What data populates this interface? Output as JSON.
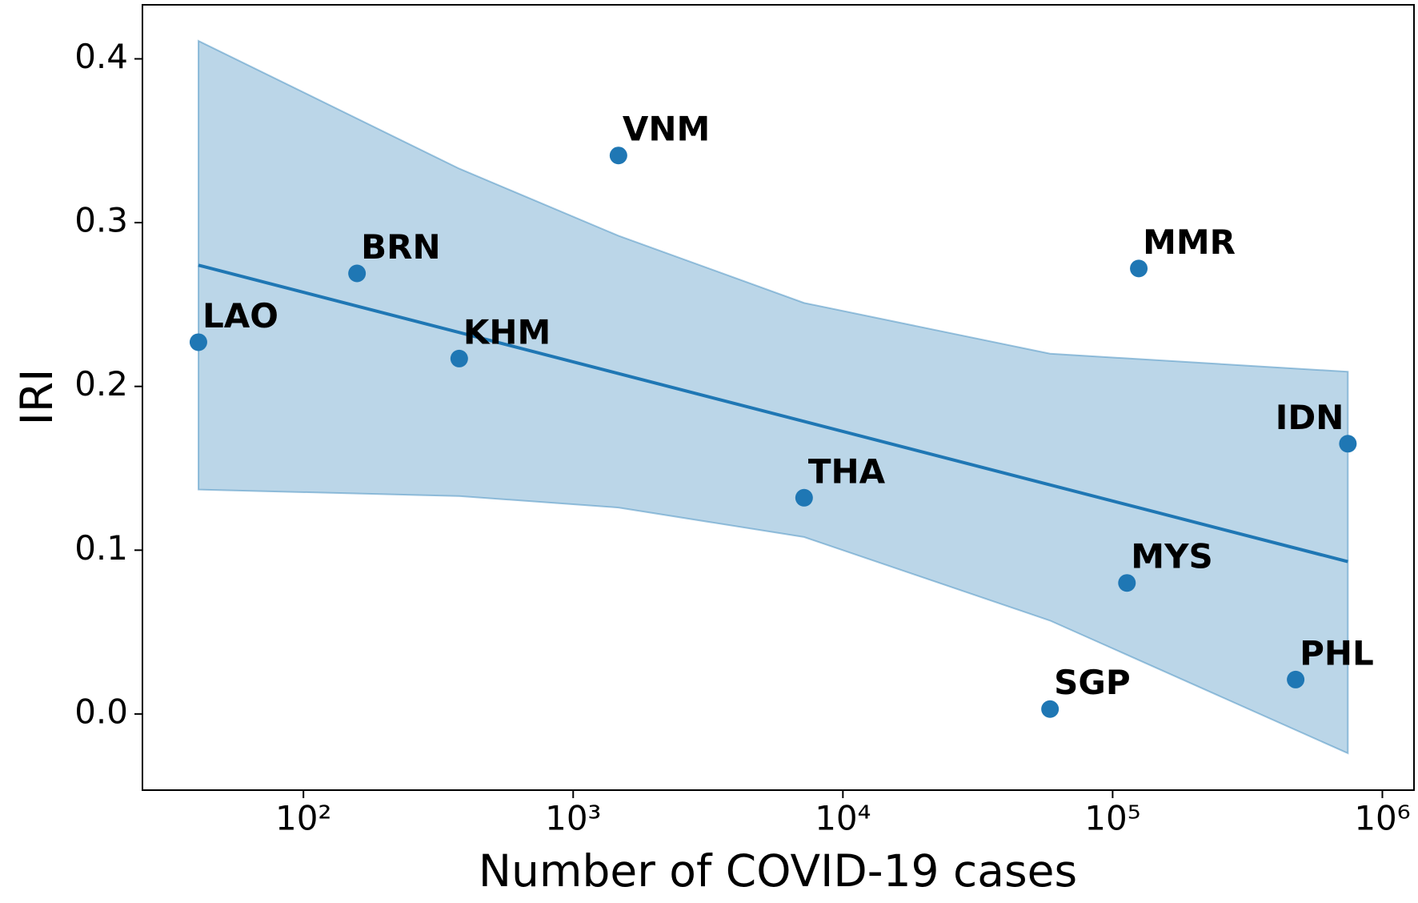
{
  "chart_data": {
    "type": "scatter",
    "x_label": "Number of COVID-19 cases",
    "y_label": "IRI",
    "xscale": "log",
    "xlim": [
      25.3,
      1310000
    ],
    "ylim": [
      -0.0465,
      0.433
    ],
    "xticks": [
      {
        "value": 100,
        "label": "10²"
      },
      {
        "value": 1000,
        "label": "10³"
      },
      {
        "value": 10000,
        "label": "10⁴"
      },
      {
        "value": 100000,
        "label": "10⁵"
      },
      {
        "value": 1000000,
        "label": "10⁶"
      }
    ],
    "yticks": [
      {
        "value": 0,
        "label": "0.0"
      },
      0.1,
      0.2,
      0.3,
      0.4
    ],
    "points": {
      "color": "#1f77b4",
      "labels": [
        "LAO",
        "BRN",
        "KHM",
        "VNM",
        "THA",
        "MMR",
        "SGP",
        "MYS",
        "PHL",
        "IDN"
      ],
      "x": [
        40.8,
        158,
        378,
        1472,
        7180,
        125000,
        58600,
        113000,
        477000,
        745000
      ],
      "values": [
        0.227,
        0.269,
        0.217,
        0.341,
        0.132,
        0.272,
        0.003,
        0.08,
        0.021,
        0.165
      ]
    },
    "fit": {
      "color": "#1f77b4",
      "x": [
        40.8,
        745000
      ],
      "values": [
        0.274,
        0.093
      ]
    },
    "band": {
      "color": "#1f77b4",
      "opacity": 0.3,
      "x": [
        40.8,
        378,
        1472,
        7180,
        58600,
        745000
      ],
      "upper": [
        0.411,
        0.333,
        0.292,
        0.251,
        0.22,
        0.209
      ],
      "lower": [
        0.137,
        0.133,
        0.126,
        0.108,
        0.057,
        -0.024
      ]
    }
  }
}
